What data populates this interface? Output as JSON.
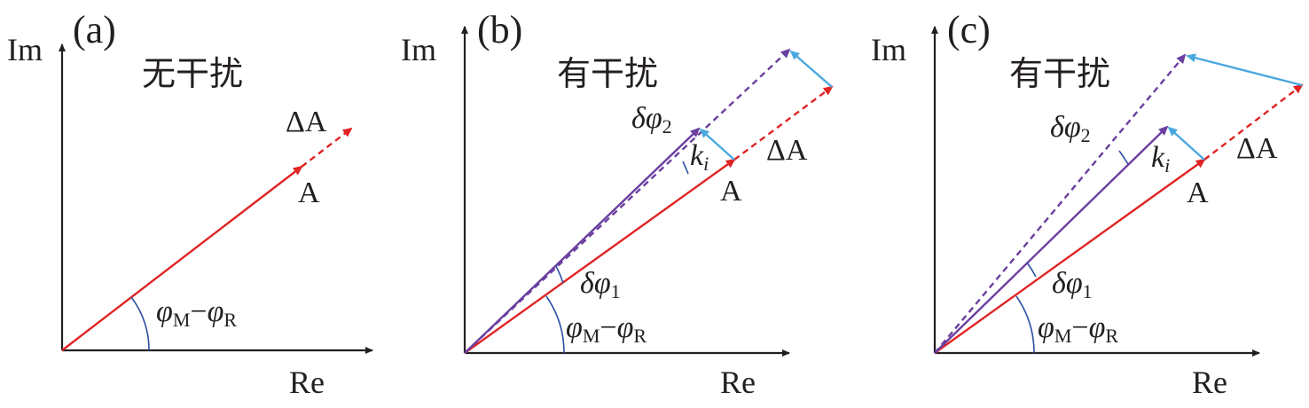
{
  "colors": {
    "axis": "#231f20",
    "vector_A": "#e02424",
    "vector_purple": "#6b3fa0",
    "vector_ki": "#4aa8e0",
    "angle_arc": "#2b4fa2"
  },
  "panels": [
    {
      "tag": "(a)",
      "im_label": "Im",
      "re_label": "Re",
      "title": "无干扰",
      "label_A": "A",
      "label_dA": "ΔA",
      "angle_main": {
        "phi": "φ",
        "sub1": "M",
        "dash": "−",
        "sub2": "R"
      }
    },
    {
      "tag": "(b)",
      "im_label": "Im",
      "re_label": "Re",
      "title": "有干扰",
      "label_A": "A",
      "label_dA": "ΔA",
      "label_ki": {
        "k": "k",
        "i": "i"
      },
      "label_dphi1": {
        "delta": "δ",
        "phi": "φ",
        "sub": "1"
      },
      "label_dphi2": {
        "delta": "δ",
        "phi": "φ",
        "sub": "2"
      },
      "angle_main": {
        "phi": "φ",
        "sub1": "M",
        "dash": "−",
        "sub2": "R"
      }
    },
    {
      "tag": "(c)",
      "im_label": "Im",
      "re_label": "Re",
      "title": "有干扰",
      "label_A": "A",
      "label_dA": "ΔA",
      "label_ki": {
        "k": "k",
        "i": "i"
      },
      "label_dphi1": {
        "delta": "δ",
        "phi": "φ",
        "sub": "1"
      },
      "label_dphi2": {
        "delta": "δ",
        "phi": "φ",
        "sub": "2"
      },
      "angle_main": {
        "phi": "φ",
        "sub1": "M",
        "dash": "−",
        "sub2": "R"
      }
    }
  ]
}
